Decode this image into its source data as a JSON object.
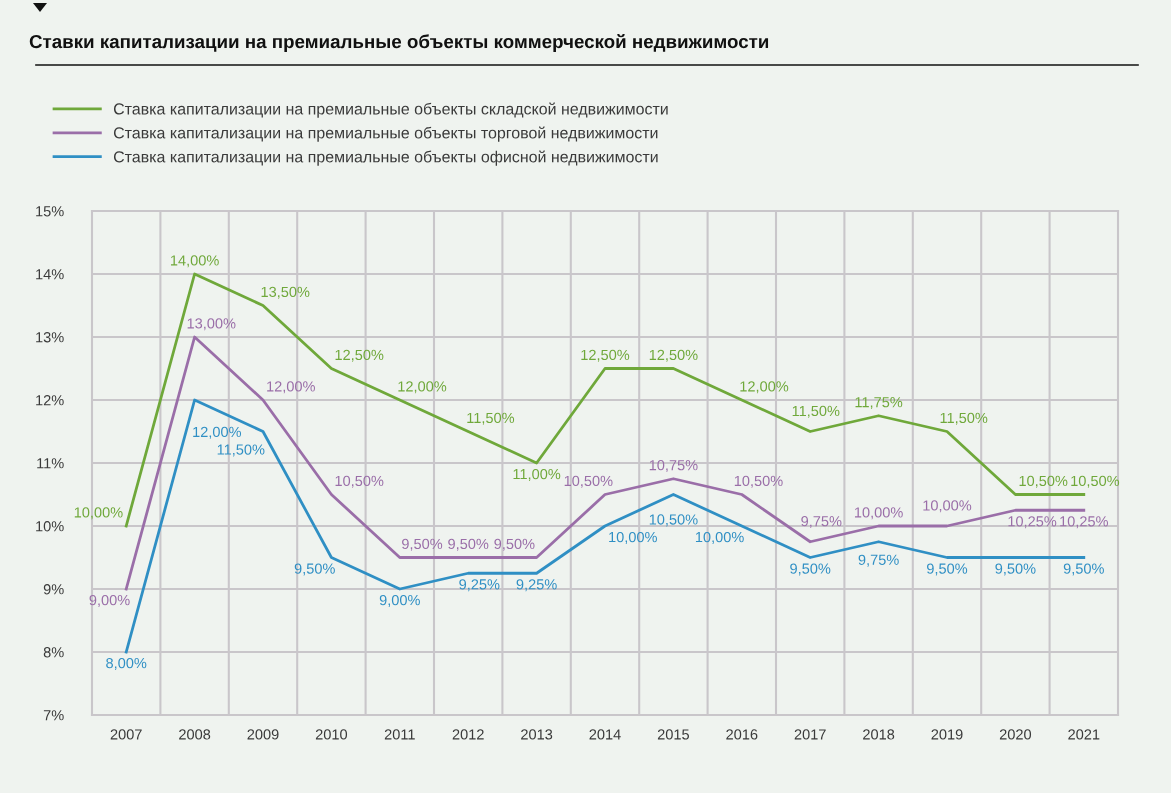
{
  "chart_data": {
    "type": "line",
    "title": "Ставки капитализации на премиальные объекты коммерческой недвижимости",
    "categories": [
      "2007",
      "2008",
      "2009",
      "2010",
      "2011",
      "2012",
      "2013",
      "2014",
      "2015",
      "2016",
      "2017",
      "2018",
      "2019",
      "2020",
      "2021"
    ],
    "series": [
      {
        "name": "Ставка капитализации на премиальные объекты складской недвижимости",
        "color": "#6fa83a",
        "values": [
          10,
          14,
          13.5,
          12.5,
          12,
          11.5,
          11,
          12.5,
          12.5,
          12,
          11.5,
          11.75,
          11.5,
          10.5,
          10.5
        ],
        "value_labels": [
          "10,00%",
          "14,00%",
          "13,50%",
          "12,50%",
          "12,00%",
          "11,50%",
          "11,00%",
          "12,50%",
          "12,50%",
          "12,00%",
          "11,50%",
          "11,75%",
          "11,50%",
          "10,50%",
          "10,50%"
        ]
      },
      {
        "name": "Ставка капитализации на премиальные объекты торговой недвижимости",
        "color": "#9a6ea8",
        "values": [
          9,
          13,
          12,
          10.5,
          9.5,
          9.5,
          9.5,
          10.5,
          10.75,
          10.5,
          9.75,
          10,
          10,
          10.25,
          10.25
        ],
        "value_labels": [
          "9,00%",
          "13,00%",
          "12,00%",
          "10,50%",
          "9,50%",
          "9,50%",
          "9,50%",
          "10,50%",
          "10,75%",
          "10,50%",
          "9,75%",
          "10,00%",
          "10,00%",
          "10,25%",
          "10,25%"
        ]
      },
      {
        "name": "Ставка капитализации на премиальные объекты офисной недвижимости",
        "color": "#2f8fc4",
        "values": [
          8,
          12,
          11.5,
          9.5,
          9,
          9.25,
          9.25,
          10,
          10.5,
          10,
          9.5,
          9.75,
          9.5,
          9.5,
          9.5
        ],
        "value_labels": [
          "8,00%",
          "12,00%",
          "11,50%",
          "9,50%",
          "9,00%",
          "9,25%",
          "9,25%",
          "10,00%",
          "10,50%",
          "10,00%",
          "9,50%",
          "9,75%",
          "9,50%",
          "9,50%",
          "9,50%"
        ]
      }
    ],
    "ylim": [
      7,
      15
    ],
    "yticks": [
      {
        "value": 7,
        "label": "7%"
      },
      {
        "value": 8,
        "label": "8%"
      },
      {
        "value": 9,
        "label": "9%"
      },
      {
        "value": 10,
        "label": "10%"
      },
      {
        "value": 11,
        "label": "11%"
      },
      {
        "value": 12,
        "label": "12%"
      },
      {
        "value": 13,
        "label": "13%"
      },
      {
        "value": 14,
        "label": "14%"
      },
      {
        "value": 15,
        "label": "15%"
      }
    ],
    "grid": true,
    "legend": "top left"
  }
}
